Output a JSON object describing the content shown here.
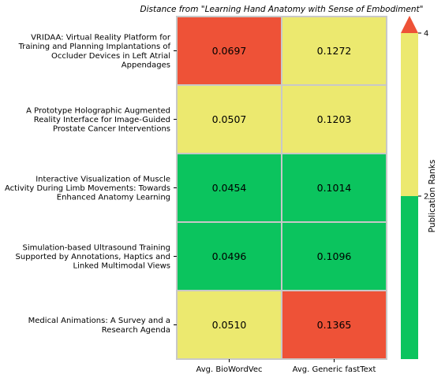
{
  "chart_data": {
    "type": "heatmap",
    "title": "Distance from \"Learning Hand Anatomy with Sense of Embodiment\"",
    "columns": [
      "Avg. BioWordVec",
      "Avg. Generic fastText"
    ],
    "rows": [
      {
        "label_lines": [
          "VRIDAA: Virtual Reality Platform for",
          "Training and Planning Implantations of",
          "Occluder Devices in Left Atrial",
          "Appendages"
        ],
        "values": [
          "0.0697",
          "0.1272"
        ],
        "ranks": [
          4,
          3
        ]
      },
      {
        "label_lines": [
          "A Prototype Holographic Augmented",
          "Reality Interface for Image-Guided",
          "Prostate Cancer Interventions"
        ],
        "values": [
          "0.0507",
          "0.1203"
        ],
        "ranks": [
          3,
          3
        ]
      },
      {
        "label_lines": [
          "Interactive Visualization of Muscle",
          "Activity During Limb Movements: Towards",
          "Enhanced Anatomy Learning"
        ],
        "values": [
          "0.0454",
          "0.1014"
        ],
        "ranks": [
          1,
          1
        ]
      },
      {
        "label_lines": [
          "Simulation-based Ultrasound Training",
          "Supported by Annotations, Haptics and",
          "Linked Multimodal Views"
        ],
        "values": [
          "0.0496",
          "0.1096"
        ],
        "ranks": [
          1,
          1
        ]
      },
      {
        "label_lines": [
          "Medical Animations: A Survey and a",
          "Research Agenda"
        ],
        "values": [
          "0.0510",
          "0.1365"
        ],
        "ranks": [
          3,
          4
        ]
      }
    ],
    "colorbar": {
      "label": "Publication Ranks",
      "ticks": [
        "2",
        "4"
      ],
      "segments": [
        {
          "from": 0,
          "to": 2,
          "color": "#0bc45e"
        },
        {
          "from": 2,
          "to": 4,
          "color": "#ece96f"
        },
        {
          "from": 4,
          "to": 5,
          "color": "#ee5237"
        }
      ],
      "range": [
        0,
        4
      ],
      "extend": "max"
    },
    "colors": {
      "rank_1_2": "#0bc45e",
      "rank_3": "#ece96f",
      "rank_4": "#ee5237",
      "cell_border": "#c8c8c8"
    }
  }
}
